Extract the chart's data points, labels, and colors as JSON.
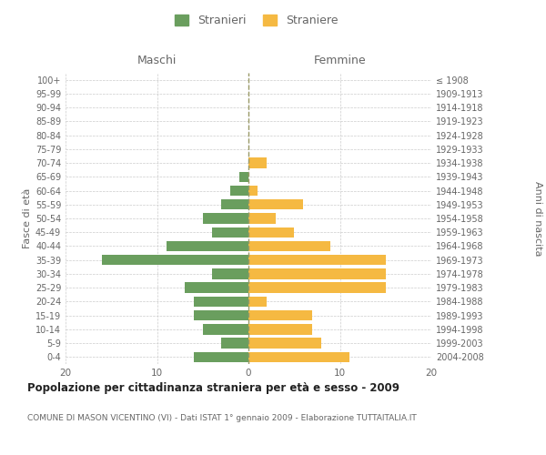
{
  "age_groups": [
    "100+",
    "95-99",
    "90-94",
    "85-89",
    "80-84",
    "75-79",
    "70-74",
    "65-69",
    "60-64",
    "55-59",
    "50-54",
    "45-49",
    "40-44",
    "35-39",
    "30-34",
    "25-29",
    "20-24",
    "15-19",
    "10-14",
    "5-9",
    "0-4"
  ],
  "birth_years": [
    "≤ 1908",
    "1909-1913",
    "1914-1918",
    "1919-1923",
    "1924-1928",
    "1929-1933",
    "1934-1938",
    "1939-1943",
    "1944-1948",
    "1949-1953",
    "1954-1958",
    "1959-1963",
    "1964-1968",
    "1969-1973",
    "1974-1978",
    "1979-1983",
    "1984-1988",
    "1989-1993",
    "1994-1998",
    "1999-2003",
    "2004-2008"
  ],
  "maschi": [
    0,
    0,
    0,
    0,
    0,
    0,
    0,
    1,
    2,
    3,
    5,
    4,
    9,
    16,
    4,
    7,
    6,
    6,
    5,
    3,
    6
  ],
  "femmine": [
    0,
    0,
    0,
    0,
    0,
    0,
    2,
    0,
    1,
    6,
    3,
    5,
    9,
    15,
    15,
    15,
    2,
    7,
    7,
    8,
    11
  ],
  "maschi_color": "#6a9e5e",
  "femmine_color": "#f5b942",
  "title": "Popolazione per cittadinanza straniera per età e sesso - 2009",
  "subtitle": "COMUNE DI MASON VICENTINO (VI) - Dati ISTAT 1° gennaio 2009 - Elaborazione TUTTAITALIA.IT",
  "ylabel_left": "Fasce di età",
  "ylabel_right": "Anni di nascita",
  "header_maschi": "Maschi",
  "header_femmine": "Femmine",
  "legend_maschi": "Stranieri",
  "legend_femmine": "Straniere",
  "xlim": 20,
  "background_color": "#ffffff",
  "grid_color": "#cccccc",
  "text_color": "#666666",
  "centerline_color": "#999966"
}
